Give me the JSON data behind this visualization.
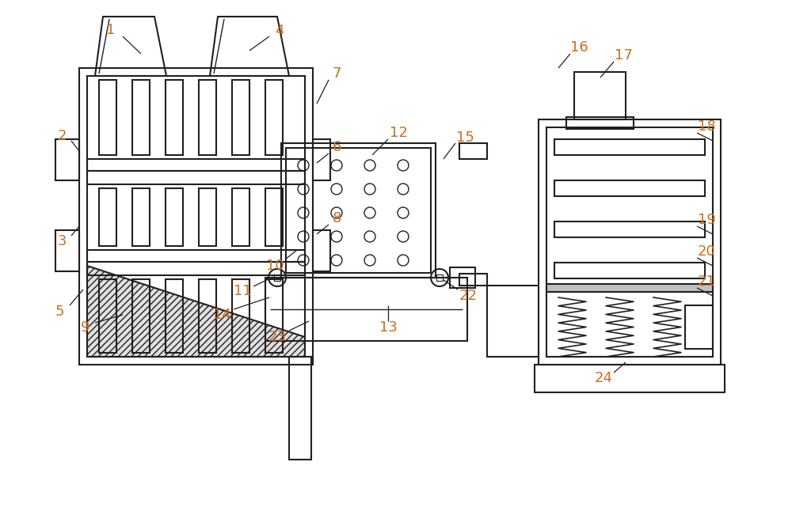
{
  "bg_color": "#ffffff",
  "line_color": "#231f20",
  "label_color": "#c87020",
  "figsize": [
    10.0,
    6.46
  ],
  "dpi": 100
}
